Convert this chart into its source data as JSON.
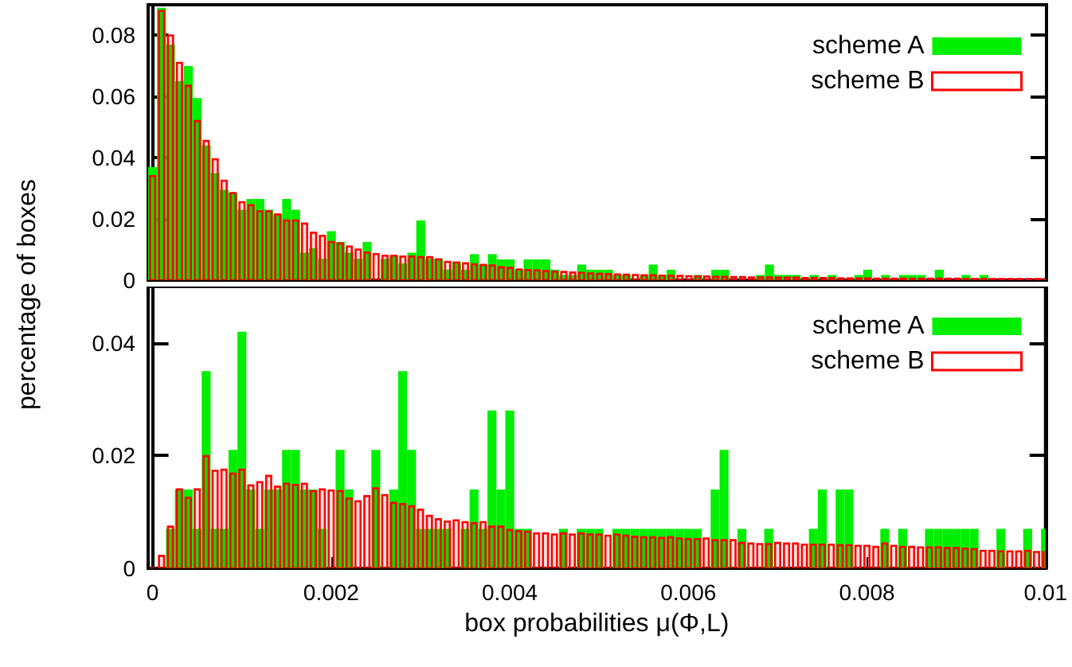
{
  "chart_data": [
    {
      "type": "histogram",
      "ylabel": "percentage of boxes",
      "legend": "top right",
      "tick_labels": "y",
      "xlim": [
        -5e-05,
        0.01
      ],
      "ylim": [
        0,
        0.09
      ],
      "yticks": [
        0,
        0.02,
        0.04,
        0.06,
        0.08
      ],
      "bins": [
        -5e-05,
        5e-05,
        0.00015,
        0.00025,
        0.00035,
        0.00045,
        0.00055,
        0.00065,
        0.00075,
        0.00085,
        0.00095,
        0.00105,
        0.00115,
        0.00125,
        0.00135,
        0.00145,
        0.00155,
        0.00165,
        0.00175,
        0.00185,
        0.00195,
        0.00205,
        0.00215,
        0.00225,
        0.00235,
        0.00245,
        0.00255,
        0.00265,
        0.00275,
        0.00285,
        0.00295,
        0.00305,
        0.00315,
        0.00325,
        0.00335,
        0.00345,
        0.00355,
        0.00365,
        0.00375,
        0.00385,
        0.00395,
        0.00405,
        0.00415,
        0.00425,
        0.00435,
        0.00445,
        0.00455,
        0.00465,
        0.00475,
        0.00485,
        0.00495,
        0.00505,
        0.00515,
        0.00525,
        0.00535,
        0.00545,
        0.00555,
        0.00565,
        0.00575,
        0.00585,
        0.00595,
        0.00605,
        0.00615,
        0.00625,
        0.00635,
        0.00645,
        0.00655,
        0.00665,
        0.00675,
        0.00685,
        0.00695,
        0.00705,
        0.00715,
        0.00725,
        0.00735,
        0.00745,
        0.00755,
        0.00765,
        0.00775,
        0.00785,
        0.00795,
        0.00805,
        0.00815,
        0.00825,
        0.00835,
        0.00845,
        0.00855,
        0.00865,
        0.00875,
        0.00885,
        0.00895,
        0.00905,
        0.00915,
        0.00925,
        0.00935,
        0.00945,
        0.00955,
        0.00965,
        0.00975,
        0.00985,
        0.00995,
        0.01005
      ],
      "series": [
        {
          "name": "scheme A",
          "color": "#00ee00",
          "values": [
            0.037,
            0.089,
            0.077,
            0.065,
            0.07,
            0.0595,
            0.044,
            0.035,
            0.0295,
            0.0285,
            0.023,
            0.0265,
            0.0265,
            0.023,
            0.0215,
            0.0265,
            0.023,
            0.009,
            0.0105,
            0.007,
            0.016,
            0.0125,
            0.009,
            0.007,
            0.0125,
            0,
            0.007,
            0.008,
            0.0055,
            0.009,
            0.0195,
            0.007,
            0.007,
            0.0035,
            0.006,
            0.0034,
            0.0085,
            0.0051,
            0.0085,
            0.0068,
            0.0068,
            0.0034,
            0.0068,
            0.0068,
            0.0068,
            0.0034,
            0.0017,
            0.0017,
            0.0051,
            0.0034,
            0.0034,
            0.0034,
            0.0017,
            0.0017,
            0,
            0.0017,
            0.0051,
            0.0017,
            0.0034,
            0,
            0,
            0.0017,
            0,
            0.0034,
            0.0034,
            0,
            0,
            0,
            0.0017,
            0.0051,
            0.0017,
            0.0017,
            0.0017,
            0,
            0.0017,
            0,
            0.0017,
            0,
            0,
            0.0017,
            0.0034,
            0,
            0.0017,
            0,
            0.0017,
            0.0017,
            0.0017,
            0,
            0.0034,
            0,
            0,
            0.0017,
            0,
            0.0017,
            0,
            0,
            0,
            0,
            0,
            0,
            0
          ]
        },
        {
          "name": "scheme B",
          "color": "#ff0000",
          "values": [
            0.034,
            0.088,
            0.08,
            0.071,
            0.0635,
            0.052,
            0.0455,
            0.0395,
            0.0325,
            0.0285,
            0.0255,
            0.0245,
            0.0225,
            0.0225,
            0.0215,
            0.0195,
            0.0195,
            0.0185,
            0.0155,
            0.0145,
            0.0125,
            0.012,
            0.011,
            0.01,
            0.009,
            0.0085,
            0.008,
            0.008,
            0.0077,
            0.0077,
            0.0075,
            0.0075,
            0.0068,
            0.006,
            0.0058,
            0.0055,
            0.0052,
            0.005,
            0.0048,
            0.0042,
            0.004,
            0.0035,
            0.0033,
            0.0032,
            0.003,
            0.0028,
            0.0027,
            0.0025,
            0.0024,
            0.0022,
            0.0021,
            0.002,
            0.0019,
            0.0018,
            0.0017,
            0.0016,
            0.0016,
            0.0015,
            0.0014,
            0.0014,
            0.0013,
            0.0012,
            0.0012,
            0.0011,
            0.0011,
            0.001,
            0.001,
            0.0009,
            0.0009,
            0.0009,
            0.0008,
            0.0008,
            0.0008,
            0.0007,
            0.0007,
            0.0007,
            0.0007,
            0.0006,
            0.0006,
            0.0006,
            0.0006,
            0.0005,
            0.0005,
            0.0005,
            0.0005,
            0.0005,
            0.0005,
            0.0005,
            0.0005,
            0.0005,
            0.0005,
            0.0004,
            0.0004,
            0.0004,
            0.0004,
            0.0004,
            0.0004,
            0.0004,
            0.0004,
            0.0004,
            0.0004
          ]
        }
      ]
    },
    {
      "type": "histogram",
      "xlabel": "box probabilities μ(Φ,L)",
      "legend": "top right",
      "xlim": [
        -5e-05,
        0.01
      ],
      "xticks": [
        0,
        0.002,
        0.004,
        0.006,
        0.008,
        0.01
      ],
      "ylim": [
        0,
        0.05
      ],
      "yticks": [
        0,
        0.02,
        0.04
      ],
      "bins": [
        -5e-05,
        5e-05,
        0.00015,
        0.00025,
        0.00035,
        0.00045,
        0.00055,
        0.00065,
        0.00075,
        0.00085,
        0.00095,
        0.00105,
        0.00115,
        0.00125,
        0.00135,
        0.00145,
        0.00155,
        0.00165,
        0.00175,
        0.00185,
        0.00195,
        0.00205,
        0.00215,
        0.00225,
        0.00235,
        0.00245,
        0.00255,
        0.00265,
        0.00275,
        0.00285,
        0.00295,
        0.00305,
        0.00315,
        0.00325,
        0.00335,
        0.00345,
        0.00355,
        0.00365,
        0.00375,
        0.00385,
        0.00395,
        0.00405,
        0.00415,
        0.00425,
        0.00435,
        0.00445,
        0.00455,
        0.00465,
        0.00475,
        0.00485,
        0.00495,
        0.00505,
        0.00515,
        0.00525,
        0.00535,
        0.00545,
        0.00555,
        0.00565,
        0.00575,
        0.00585,
        0.00595,
        0.00605,
        0.00615,
        0.00625,
        0.00635,
        0.00645,
        0.00655,
        0.00665,
        0.00675,
        0.00685,
        0.00695,
        0.00705,
        0.00715,
        0.00725,
        0.00735,
        0.00745,
        0.00755,
        0.00765,
        0.00775,
        0.00785,
        0.00795,
        0.00805,
        0.00815,
        0.00825,
        0.00835,
        0.00845,
        0.00855,
        0.00865,
        0.00875,
        0.00885,
        0.00895,
        0.00905,
        0.00915,
        0.00925,
        0.00935,
        0.00945,
        0.00955,
        0.00965,
        0.00975,
        0.00985,
        0.00995,
        0.01005
      ],
      "series": [
        {
          "name": "scheme A",
          "color": "#00ee00",
          "values": [
            0,
            0,
            0.007,
            0.014,
            0.014,
            0.007,
            0.035,
            0.007,
            0.007,
            0.021,
            0.042,
            0.014,
            0.007,
            0.014,
            0.014,
            0.021,
            0.021,
            0.014,
            0.014,
            0.007,
            0,
            0.021,
            0.014,
            0,
            0,
            0.021,
            0,
            0.014,
            0.035,
            0.021,
            0.007,
            0.007,
            0.007,
            0.007,
            0,
            0.007,
            0.014,
            0.007,
            0.028,
            0.014,
            0.028,
            0.007,
            0.007,
            0,
            0,
            0,
            0.007,
            0,
            0.007,
            0.007,
            0.007,
            0,
            0.007,
            0.007,
            0.007,
            0.007,
            0.007,
            0.007,
            0.007,
            0.007,
            0.007,
            0.007,
            0,
            0.014,
            0.021,
            0,
            0.007,
            0,
            0,
            0.007,
            0,
            0,
            0,
            0,
            0.007,
            0.014,
            0,
            0.014,
            0.014,
            0,
            0,
            0,
            0.007,
            0,
            0.007,
            0,
            0,
            0.007,
            0.007,
            0.007,
            0.007,
            0.007,
            0.007,
            0,
            0,
            0.007,
            0,
            0,
            0.007,
            0,
            0.007
          ]
        },
        {
          "name": "scheme B",
          "color": "#ff0000",
          "values": [
            0,
            0.0022,
            0.0074,
            0.014,
            0.0125,
            0.014,
            0.0199,
            0.0173,
            0.0175,
            0.0168,
            0.0175,
            0.0147,
            0.0153,
            0.0164,
            0.0145,
            0.015,
            0.0148,
            0.015,
            0.0137,
            0.014,
            0.0138,
            0.0137,
            0.0124,
            0.0119,
            0.0128,
            0.0142,
            0.013,
            0.0116,
            0.0114,
            0.011,
            0.0104,
            0.0093,
            0.0087,
            0.0083,
            0.0085,
            0.0082,
            0.008,
            0.0082,
            0.0074,
            0.0074,
            0.0068,
            0.0066,
            0.0065,
            0.0062,
            0.0062,
            0.006,
            0.0062,
            0.006,
            0.0062,
            0.006,
            0.006,
            0.0058,
            0.006,
            0.0058,
            0.0056,
            0.0055,
            0.0055,
            0.0054,
            0.0055,
            0.0053,
            0.0052,
            0.0052,
            0.0053,
            0.005,
            0.005,
            0.005,
            0.0045,
            0.0044,
            0.0043,
            0.0043,
            0.0045,
            0.0044,
            0.0044,
            0.0042,
            0.0042,
            0.0042,
            0.0042,
            0.0041,
            0.0041,
            0.004,
            0.004,
            0.0038,
            0.0044,
            0.004,
            0.0038,
            0.0038,
            0.0037,
            0.0037,
            0.0037,
            0.0036,
            0.0036,
            0.0035,
            0.0034,
            0.0031,
            0.0031,
            0.003,
            0.003,
            0.003,
            0.0031,
            0.0029,
            0.0029
          ]
        }
      ]
    }
  ]
}
